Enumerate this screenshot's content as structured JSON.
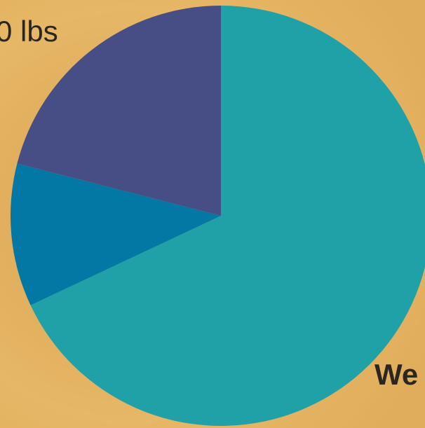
{
  "chart_data": {
    "type": "pie",
    "values": [
      68,
      11,
      21
    ],
    "colors": [
      "#1fa1a7",
      "#0378a4",
      "#474e86"
    ],
    "annotations": [
      "0 lbs",
      "We"
    ]
  }
}
